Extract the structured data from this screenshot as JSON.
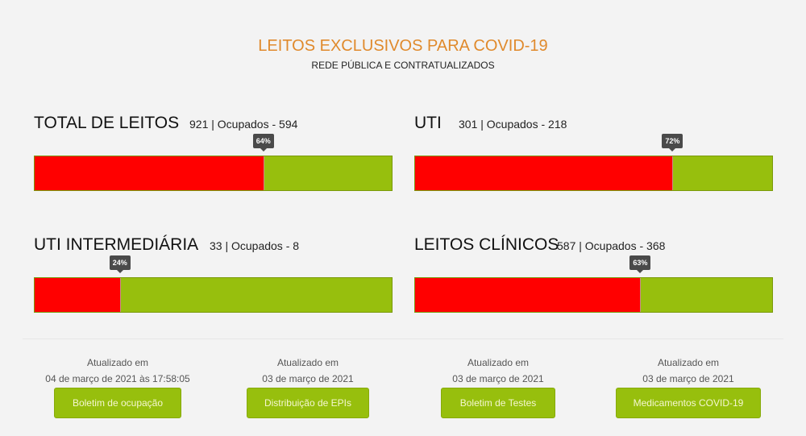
{
  "header": {
    "title": "LEITOS EXCLUSIVOS PARA COVID-19",
    "subtitle": "REDE PÚBLICA E CONTRATUALIZADOS"
  },
  "cards": [
    {
      "name": "TOTAL DE LEITOS",
      "stats": "921 | Ocupados - 594",
      "percent_label": "64%",
      "percent": 64
    },
    {
      "name": "UTI",
      "stats": "301 | Ocupados - 218",
      "percent_label": "72%",
      "percent": 72
    },
    {
      "name": "UTI INTERMEDIÁRIA",
      "stats": "33 | Ocupados - 8",
      "percent_label": "24%",
      "percent": 24
    },
    {
      "name": "LEITOS CLÍNICOS",
      "stats": "587 | Ocupados - 368",
      "percent_label": "63%",
      "percent": 63
    }
  ],
  "footer": [
    {
      "updated": "Atualizado em",
      "date": "04 de março de 2021 às 17:58:05",
      "button": "Boletim de ocupação"
    },
    {
      "updated": "Atualizado em",
      "date": "03 de março de 2021",
      "button": "Distribuição de EPIs"
    },
    {
      "updated": "Atualizado em",
      "date": "03 de março de 2021",
      "button": "Boletim de Testes"
    },
    {
      "updated": "Atualizado em",
      "date": "03 de março de 2021",
      "button": "Medicamentos COVID-19"
    }
  ],
  "colors": {
    "occupied": "#ff0000",
    "free": "#97bf0d",
    "title": "#e08a2c"
  }
}
